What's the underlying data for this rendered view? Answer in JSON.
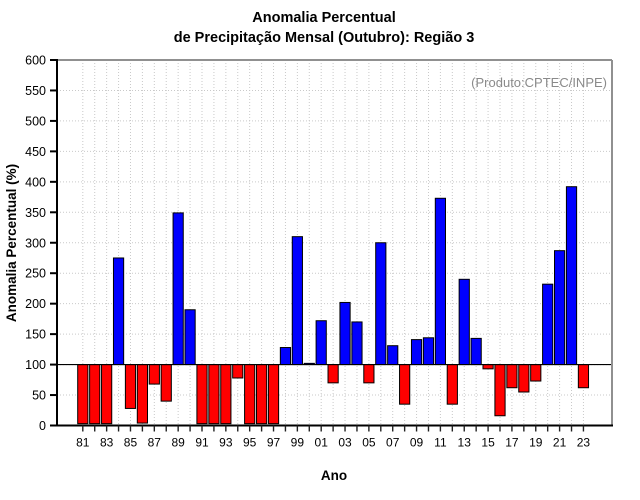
{
  "title": {
    "line1": "Anomalia Percentual",
    "line2": "de Precipitação Mensal (Outubro): Região 3"
  },
  "annotation": "(Produto:CPTEC/INPE)",
  "chart_data": {
    "type": "bar",
    "title": "Anomalia Percentual de Precipitação Mensal (Outubro): Região 3",
    "xlabel": "Ano",
    "ylabel": "Anomalia Percentual (%)",
    "ylim": [
      0,
      600
    ],
    "ytick_step": 50,
    "ytick_labels": [
      "0",
      "50",
      "100",
      "150",
      "200",
      "250",
      "300",
      "350",
      "400",
      "450",
      "500",
      "550",
      "600"
    ],
    "baseline": 100,
    "grid": "dotted",
    "legend_position": "none",
    "x_tick_labels_shown": [
      "81",
      "83",
      "85",
      "87",
      "89",
      "91",
      "93",
      "95",
      "97",
      "99",
      "01",
      "03",
      "05",
      "07",
      "09",
      "11",
      "13",
      "15",
      "17",
      "19",
      "21",
      "23"
    ],
    "categories": [
      "81",
      "82",
      "83",
      "84",
      "85",
      "86",
      "87",
      "88",
      "89",
      "90",
      "91",
      "92",
      "93",
      "94",
      "95",
      "96",
      "97",
      "98",
      "99",
      "00",
      "01",
      "02",
      "03",
      "04",
      "05",
      "06",
      "07",
      "08",
      "09",
      "10",
      "11",
      "12",
      "13",
      "14",
      "15",
      "16",
      "17",
      "18",
      "19",
      "20",
      "21",
      "22",
      "23"
    ],
    "years": [
      1981,
      1982,
      1983,
      1984,
      1985,
      1986,
      1987,
      1988,
      1989,
      1990,
      1991,
      1992,
      1993,
      1994,
      1995,
      1996,
      1997,
      1998,
      1999,
      2000,
      2001,
      2002,
      2003,
      2004,
      2005,
      2006,
      2007,
      2008,
      2009,
      2010,
      2011,
      2012,
      2013,
      2014,
      2015,
      2016,
      2017,
      2018,
      2019,
      2020,
      2021,
      2022,
      2023
    ],
    "values": [
      3,
      3,
      3,
      275,
      28,
      4,
      68,
      40,
      349,
      190,
      3,
      3,
      3,
      78,
      3,
      3,
      3,
      128,
      310,
      102,
      172,
      70,
      202,
      170,
      70,
      300,
      131,
      35,
      141,
      144,
      373,
      35,
      240,
      143,
      93,
      16,
      62,
      55,
      73,
      232,
      287,
      392,
      62
    ],
    "colors": {
      "above_baseline": "#0000ff",
      "below_baseline": "#ff0000",
      "bar_border": "#000000",
      "grid": "#c9c9c9",
      "annotation_text": "#8a8a8a",
      "axis": "#000000",
      "frame_top_right": "#909090"
    }
  }
}
